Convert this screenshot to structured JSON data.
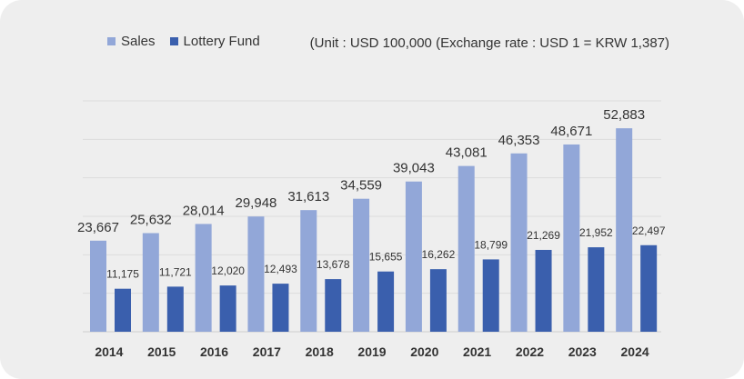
{
  "chart_data": {
    "type": "bar",
    "title": "",
    "subtitle": "(Unit : USD 100,000 (Exchange rate : USD 1 = KRW 1,387)",
    "xlabel": "",
    "ylabel": "",
    "ylim": [
      0,
      60000
    ],
    "grid": true,
    "legend_position": "top-left",
    "categories": [
      "2014",
      "2015",
      "2016",
      "2017",
      "2018",
      "2019",
      "2020",
      "2021",
      "2022",
      "2023",
      "2024"
    ],
    "series": [
      {
        "name": "Sales",
        "color": "#92a7d8",
        "values": [
          23667,
          25632,
          28014,
          29948,
          31613,
          34559,
          39043,
          43081,
          46353,
          48671,
          52883
        ]
      },
      {
        "name": "Lottery Fund",
        "color": "#3a5fad",
        "values": [
          11175,
          11721,
          12020,
          12493,
          13678,
          15655,
          16262,
          18799,
          21269,
          21952,
          22497
        ]
      }
    ]
  }
}
